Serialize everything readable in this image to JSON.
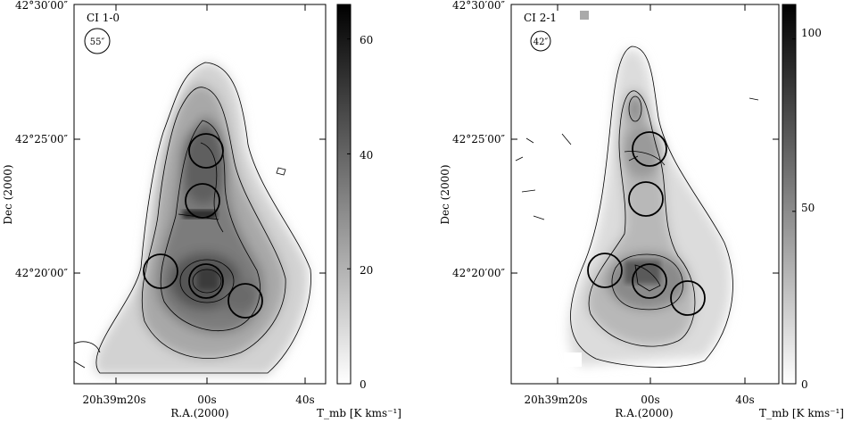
{
  "figure": {
    "panels": [
      {
        "id": "left",
        "map_label": "CI 1-0",
        "beam_label": "55″",
        "ylabel": "Dec (2000)",
        "dec_ticks": [
          "42°30′00″",
          "42°25′00″",
          "42°20′00″"
        ],
        "ra_ticks": [
          "20h39m20s",
          "00s",
          "40s"
        ],
        "xlabel": "R.A.(2000)",
        "colorbar_ticks": [
          "60",
          "40",
          "20",
          "0"
        ],
        "colorbar_max": 66,
        "colorbar_label": "T_mb [K kms⁻¹]"
      },
      {
        "id": "right",
        "map_label": "CI 2-1",
        "beam_label": "42″",
        "ylabel": "Dec (2000)",
        "dec_ticks": [
          "42°30′00″",
          "42°25′00″",
          "42°20′00″"
        ],
        "ra_ticks": [
          "20h39m20s",
          "00s",
          "40s"
        ],
        "xlabel": "R.A.(2000)",
        "colorbar_ticks": [
          "100",
          "50",
          "0"
        ],
        "colorbar_max": 110,
        "colorbar_label": "T_mb [K kms⁻¹]"
      }
    ],
    "colors": {
      "foreground": "#000000",
      "background": "#ffffff"
    }
  }
}
